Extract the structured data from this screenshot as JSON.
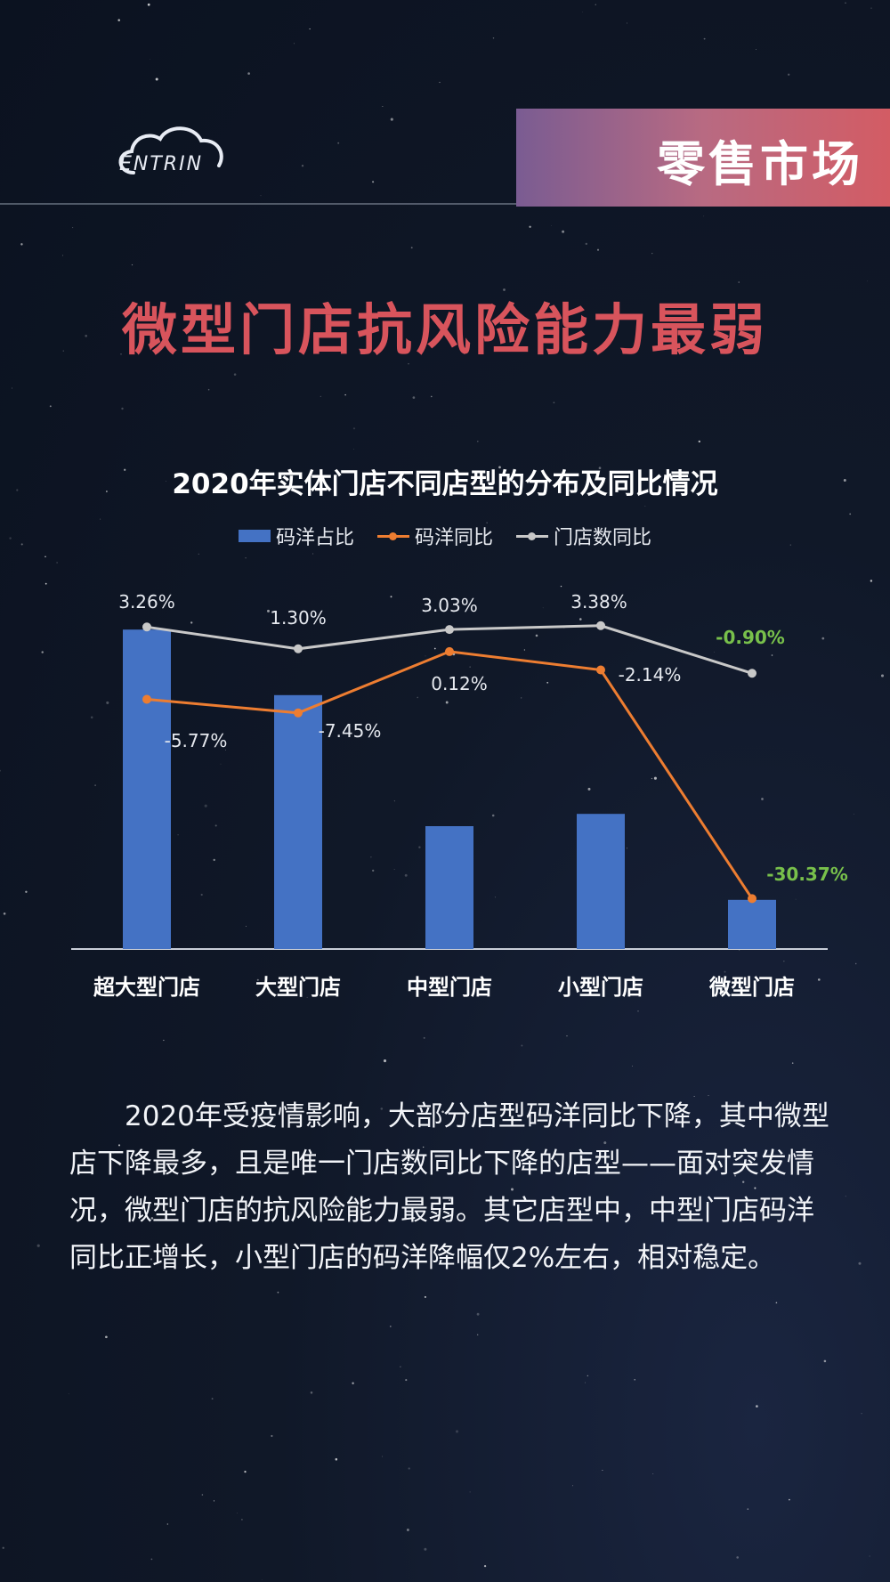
{
  "brand": {
    "logo_text": "ENTRIN"
  },
  "header": {
    "section_label": "零售市场"
  },
  "headline": "微型门店抗风险能力最弱",
  "colors": {
    "bar": "#4472c4",
    "yoy_sales": "#ed7d31",
    "yoy_store": "#c8c8c8",
    "highlight": "#78c04b",
    "headline": "#d8545c"
  },
  "chart_data": {
    "type": "bar",
    "title": "2020年实体门店不同店型的分布及同比情况",
    "categories": [
      "超大型门店",
      "大型门店",
      "中型门店",
      "小型门店",
      "微型门店"
    ],
    "series": [
      {
        "name": "码洋占比",
        "type": "bar",
        "values": [
          39,
          31,
          15,
          16.5,
          6
        ]
      },
      {
        "name": "码洋同比",
        "type": "line",
        "values": [
          -5.77,
          -7.45,
          0.12,
          -2.14,
          -30.37
        ],
        "labels": [
          "-5.77%",
          "-7.45%",
          "0.12%",
          "-2.14%",
          "-30.37%"
        ]
      },
      {
        "name": "门店数同比",
        "type": "line",
        "values": [
          3.26,
          1.3,
          3.03,
          3.38,
          -0.9
        ],
        "labels": [
          "3.26%",
          "1.30%",
          "3.03%",
          "3.38%",
          "-0.90%"
        ]
      }
    ],
    "legend": "top-center",
    "grid": false,
    "highlighted_labels": [
      "-30.37%",
      "-0.90%"
    ]
  },
  "body": {
    "paragraph": "2020年受疫情影响，大部分店型码洋同比下降，其中微型店下降最多，且是唯一门店数同比下降的店型——面对突发情况，微型门店的抗风险能力最弱。其它店型中，中型门店码洋同比正增长，小型门店的码洋降幅仅2%左右，相对稳定。"
  }
}
